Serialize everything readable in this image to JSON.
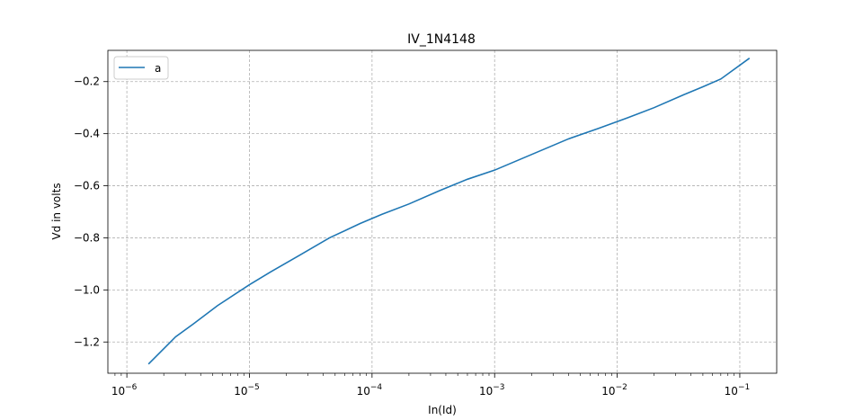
{
  "chart_data": {
    "type": "line",
    "title": "IV_1N4148",
    "xlabel": "In(Id)",
    "ylabel": "Vd in volts",
    "xscale": "log",
    "xlim": [
      7e-07,
      0.2
    ],
    "ylim": [
      -1.32,
      -0.08
    ],
    "x_ticks": [
      {
        "value": 1e-06,
        "base": "10",
        "exp": "−6"
      },
      {
        "value": 1e-05,
        "base": "10",
        "exp": "−5"
      },
      {
        "value": 0.0001,
        "base": "10",
        "exp": "−4"
      },
      {
        "value": 0.001,
        "base": "10",
        "exp": "−3"
      },
      {
        "value": 0.01,
        "base": "10",
        "exp": "−2"
      },
      {
        "value": 0.1,
        "base": "10",
        "exp": "−1"
      }
    ],
    "y_ticks": [
      {
        "value": -1.2,
        "label": "−1.2"
      },
      {
        "value": -1.0,
        "label": "−1.0"
      },
      {
        "value": -0.8,
        "label": "−0.8"
      },
      {
        "value": -0.6,
        "label": "−0.6"
      },
      {
        "value": -0.4,
        "label": "−0.4"
      },
      {
        "value": -0.2,
        "label": "−0.2"
      }
    ],
    "grid": true,
    "legend_position": "upper-left",
    "series": [
      {
        "name": "a",
        "color": "#1f77b4",
        "x": [
          1.5e-06,
          2.5e-06,
          3.5e-06,
          5.5e-06,
          1e-05,
          1.5e-05,
          2.5e-05,
          4.5e-05,
          8e-05,
          0.00012,
          0.0002,
          0.00035,
          0.0006,
          0.001,
          0.002,
          0.004,
          0.007,
          0.012,
          0.02,
          0.035,
          0.05,
          0.07,
          0.12
        ],
        "y": [
          -1.285,
          -1.18,
          -1.13,
          -1.06,
          -0.98,
          -0.93,
          -0.87,
          -0.8,
          -0.745,
          -0.71,
          -0.67,
          -0.62,
          -0.575,
          -0.54,
          -0.48,
          -0.42,
          -0.38,
          -0.34,
          -0.3,
          -0.25,
          -0.22,
          -0.19,
          -0.11
        ]
      }
    ]
  }
}
